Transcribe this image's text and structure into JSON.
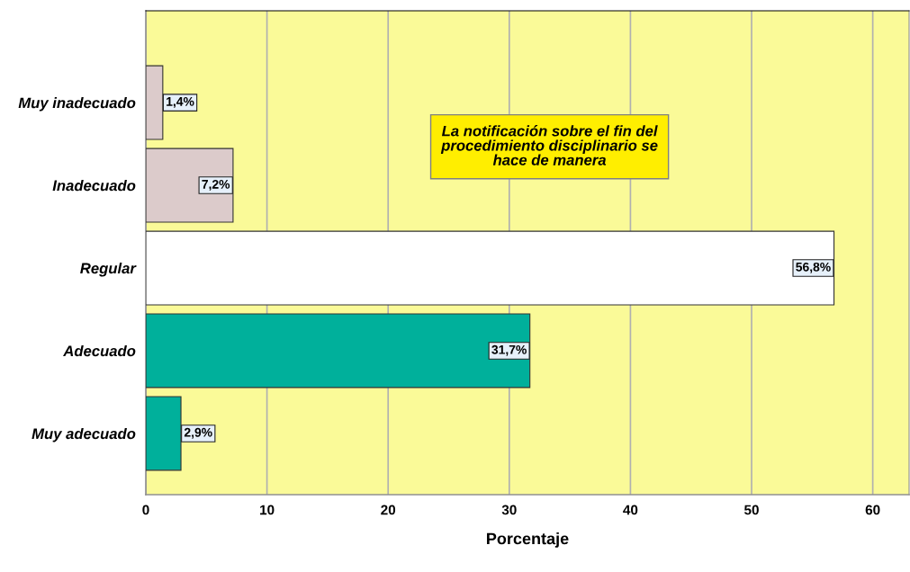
{
  "chart_data": {
    "type": "bar",
    "orientation": "horizontal",
    "title": "La notificación sobre el fin del\nprocedimiento disciplinario se\nhace de manera",
    "xlabel": "Porcentaje",
    "categories": [
      "Muy inadecuado",
      "Inadecuado",
      "Regular",
      "Adecuado",
      "Muy adecuado"
    ],
    "values": [
      1.4,
      7.2,
      56.8,
      31.7,
      2.9
    ],
    "colors": [
      "#dccbcb",
      "#dccbcb",
      "#ffffff",
      "#00b09b",
      "#00b09b"
    ],
    "value_labels": [
      "1,4%",
      "7,2%",
      "56,8%",
      "31,7%",
      "2,9%"
    ],
    "xlim": [
      0,
      63
    ],
    "xticks": [
      0,
      10,
      20,
      30,
      40,
      50,
      60
    ],
    "grid": "x"
  }
}
